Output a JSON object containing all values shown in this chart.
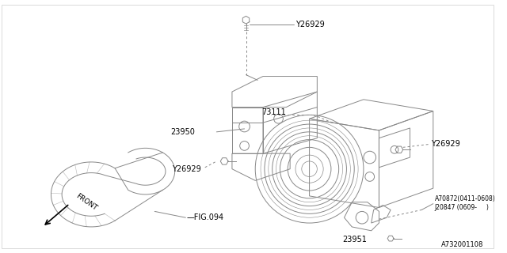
{
  "background_color": "#ffffff",
  "line_color": "#888888",
  "text_color": "#000000",
  "diagram_id": "A732001108",
  "labels": {
    "Y26929_top": "Y26929",
    "Y26929_left": "Y26929",
    "Y26929_right": "Y26929",
    "part_23950": "23950",
    "part_73111": "73111",
    "part_23951": "23951",
    "fig094": "FIG.094",
    "front": "FRONT",
    "A70872": "A70872(0411-0608)",
    "J20847": "J20847 (0609-     )"
  },
  "font_size": 7.0,
  "lw": 0.7
}
